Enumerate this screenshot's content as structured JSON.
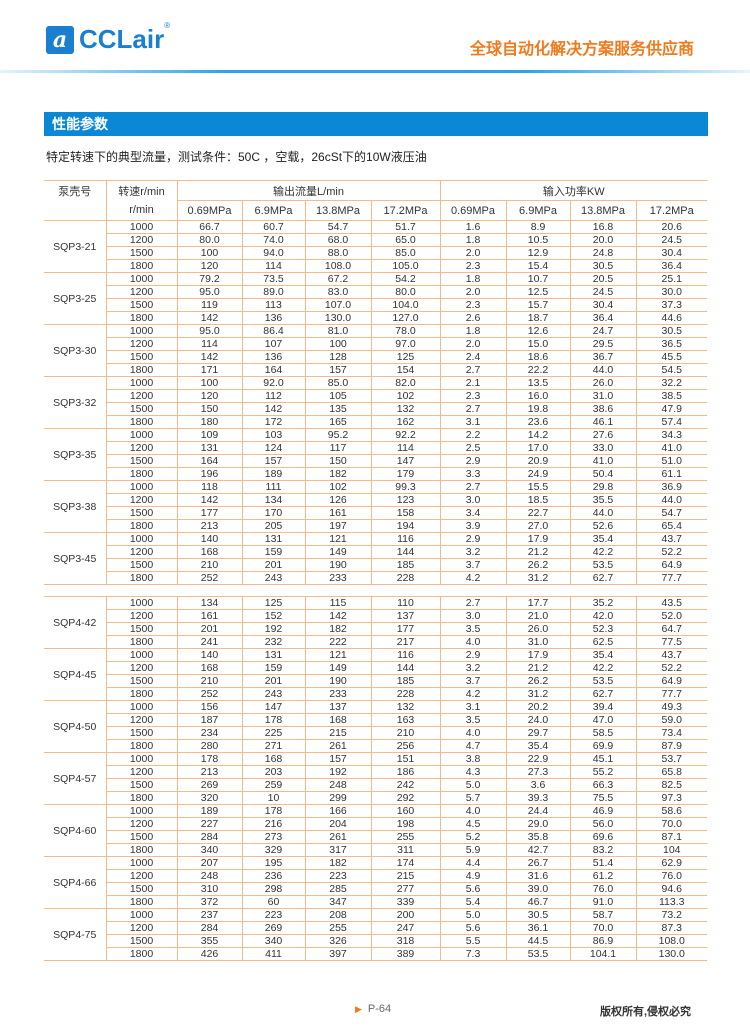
{
  "header": {
    "logo_text": "CCLair",
    "logo_mark": "a",
    "registered": "®",
    "slogan": "全球自动化解决方案服务供应商"
  },
  "section": {
    "title": "性能参数",
    "note": "特定转速下的典型流量，测试条件：50C ，空载，26cSt下的10W液压油"
  },
  "table": {
    "headers": {
      "pump": "泵壳号",
      "speed": "转速r/min",
      "speed_unit": "r/min",
      "flow": "输出流量L/min",
      "power": "输入功率KW",
      "pressures": [
        "0.69MPa",
        "6.9MPa",
        "13.8MPa",
        "17.2MPa"
      ]
    },
    "groups1": [
      {
        "pump": "SQP3-21",
        "rows": [
          [
            "1000",
            "66.7",
            "60.7",
            "54.7",
            "51.7",
            "1.6",
            "8.9",
            "16.8",
            "20.6"
          ],
          [
            "1200",
            "80.0",
            "74.0",
            "68.0",
            "65.0",
            "1.8",
            "10.5",
            "20.0",
            "24.5"
          ],
          [
            "1500",
            "100",
            "94.0",
            "88.0",
            "85.0",
            "2.0",
            "12.9",
            "24.8",
            "30.4"
          ],
          [
            "1800",
            "120",
            "114",
            "108.0",
            "105.0",
            "2.3",
            "15.4",
            "30.5",
            "36.4"
          ]
        ]
      },
      {
        "pump": "SQP3-25",
        "rows": [
          [
            "1000",
            "79.2",
            "73.5",
            "67.2",
            "54.2",
            "1.8",
            "10.7",
            "20.5",
            "25.1"
          ],
          [
            "1200",
            "95.0",
            "89.0",
            "83.0",
            "80.0",
            "2.0",
            "12.5",
            "24.5",
            "30.0"
          ],
          [
            "1500",
            "119",
            "113",
            "107.0",
            "104.0",
            "2.3",
            "15.7",
            "30.4",
            "37.3"
          ],
          [
            "1800",
            "142",
            "136",
            "130.0",
            "127.0",
            "2.6",
            "18.7",
            "36.4",
            "44.6"
          ]
        ]
      },
      {
        "pump": "SQP3-30",
        "rows": [
          [
            "1000",
            "95.0",
            "86.4",
            "81.0",
            "78.0",
            "1.8",
            "12.6",
            "24.7",
            "30.5"
          ],
          [
            "1200",
            "114",
            "107",
            "100",
            "97.0",
            "2.0",
            "15.0",
            "29.5",
            "36.5"
          ],
          [
            "1500",
            "142",
            "136",
            "128",
            "125",
            "2.4",
            "18.6",
            "36.7",
            "45.5"
          ],
          [
            "1800",
            "171",
            "164",
            "157",
            "154",
            "2.7",
            "22.2",
            "44.0",
            "54.5"
          ]
        ]
      },
      {
        "pump": "SQP3-32",
        "rows": [
          [
            "1000",
            "100",
            "92.0",
            "85.0",
            "82.0",
            "2.1",
            "13.5",
            "26.0",
            "32.2"
          ],
          [
            "1200",
            "120",
            "112",
            "105",
            "102",
            "2.3",
            "16.0",
            "31.0",
            "38.5"
          ],
          [
            "1500",
            "150",
            "142",
            "135",
            "132",
            "2.7",
            "19.8",
            "38.6",
            "47.9"
          ],
          [
            "1800",
            "180",
            "172",
            "165",
            "162",
            "3.1",
            "23.6",
            "46.1",
            "57.4"
          ]
        ]
      },
      {
        "pump": "SQP3-35",
        "rows": [
          [
            "1000",
            "109",
            "103",
            "95.2",
            "92.2",
            "2.2",
            "14.2",
            "27.6",
            "34.3"
          ],
          [
            "1200",
            "131",
            "124",
            "117",
            "114",
            "2.5",
            "17.0",
            "33.0",
            "41.0"
          ],
          [
            "1500",
            "164",
            "157",
            "150",
            "147",
            "2.9",
            "20.9",
            "41.0",
            "51.0"
          ],
          [
            "1800",
            "196",
            "189",
            "182",
            "179",
            "3.3",
            "24.9",
            "50.4",
            "61.1"
          ]
        ]
      },
      {
        "pump": "SQP3-38",
        "rows": [
          [
            "1000",
            "118",
            "111",
            "102",
            "99.3",
            "2.7",
            "15.5",
            "29.8",
            "36.9"
          ],
          [
            "1200",
            "142",
            "134",
            "126",
            "123",
            "3.0",
            "18.5",
            "35.5",
            "44.0"
          ],
          [
            "1500",
            "177",
            "170",
            "161",
            "158",
            "3.4",
            "22.7",
            "44.0",
            "54.7"
          ],
          [
            "1800",
            "213",
            "205",
            "197",
            "194",
            "3.9",
            "27.0",
            "52.6",
            "65.4"
          ]
        ]
      },
      {
        "pump": "SQP3-45",
        "rows": [
          [
            "1000",
            "140",
            "131",
            "121",
            "116",
            "2.9",
            "17.9",
            "35.4",
            "43.7"
          ],
          [
            "1200",
            "168",
            "159",
            "149",
            "144",
            "3.2",
            "21.2",
            "42.2",
            "52.2"
          ],
          [
            "1500",
            "210",
            "201",
            "190",
            "185",
            "3.7",
            "26.2",
            "53.5",
            "64.9"
          ],
          [
            "1800",
            "252",
            "243",
            "233",
            "228",
            "4.2",
            "31.2",
            "62.7",
            "77.7"
          ]
        ]
      }
    ],
    "groups2": [
      {
        "pump": "SQP4-42",
        "rows": [
          [
            "1000",
            "134",
            "125",
            "115",
            "110",
            "2.7",
            "17.7",
            "35.2",
            "43.5"
          ],
          [
            "1200",
            "161",
            "152",
            "142",
            "137",
            "3.0",
            "21.0",
            "42.0",
            "52.0"
          ],
          [
            "1500",
            "201",
            "192",
            "182",
            "177",
            "3.5",
            "26.0",
            "52.3",
            "64.7"
          ],
          [
            "1800",
            "241",
            "232",
            "222",
            "217",
            "4.0",
            "31.0",
            "62.5",
            "77.5"
          ]
        ]
      },
      {
        "pump": "SQP4-45",
        "rows": [
          [
            "1000",
            "140",
            "131",
            "121",
            "116",
            "2.9",
            "17.9",
            "35.4",
            "43.7"
          ],
          [
            "1200",
            "168",
            "159",
            "149",
            "144",
            "3.2",
            "21.2",
            "42.2",
            "52.2"
          ],
          [
            "1500",
            "210",
            "201",
            "190",
            "185",
            "3.7",
            "26.2",
            "53.5",
            "64.9"
          ],
          [
            "1800",
            "252",
            "243",
            "233",
            "228",
            "4.2",
            "31.2",
            "62.7",
            "77.7"
          ]
        ]
      },
      {
        "pump": "SQP4-50",
        "rows": [
          [
            "1000",
            "156",
            "147",
            "137",
            "132",
            "3.1",
            "20.2",
            "39.4",
            "49.3"
          ],
          [
            "1200",
            "187",
            "178",
            "168",
            "163",
            "3.5",
            "24.0",
            "47.0",
            "59.0"
          ],
          [
            "1500",
            "234",
            "225",
            "215",
            "210",
            "4.0",
            "29.7",
            "58.5",
            "73.4"
          ],
          [
            "1800",
            "280",
            "271",
            "261",
            "256",
            "4.7",
            "35.4",
            "69.9",
            "87.9"
          ]
        ]
      },
      {
        "pump": "SQP4-57",
        "rows": [
          [
            "1000",
            "178",
            "168",
            "157",
            "151",
            "3.8",
            "22.9",
            "45.1",
            "53.7"
          ],
          [
            "1200",
            "213",
            "203",
            "192",
            "186",
            "4.3",
            "27.3",
            "55.2",
            "65.8"
          ],
          [
            "1500",
            "269",
            "259",
            "248",
            "242",
            "5.0",
            "3.6",
            "66.3",
            "82.5"
          ],
          [
            "1800",
            "320",
            "10",
            "299",
            "292",
            "5.7",
            "39.3",
            "75.5",
            "97.3"
          ]
        ]
      },
      {
        "pump": "SQP4-60",
        "rows": [
          [
            "1000",
            "189",
            "178",
            "166",
            "160",
            "4.0",
            "24.4",
            "46.9",
            "58.6"
          ],
          [
            "1200",
            "227",
            "216",
            "204",
            "198",
            "4.5",
            "29.0",
            "56.0",
            "70.0"
          ],
          [
            "1500",
            "284",
            "273",
            "261",
            "255",
            "5.2",
            "35.8",
            "69.6",
            "87.1"
          ],
          [
            "1800",
            "340",
            "329",
            "317",
            "311",
            "5.9",
            "42.7",
            "83.2",
            "104"
          ]
        ]
      },
      {
        "pump": "SQP4-66",
        "rows": [
          [
            "1000",
            "207",
            "195",
            "182",
            "174",
            "4.4",
            "26.7",
            "51.4",
            "62.9"
          ],
          [
            "1200",
            "248",
            "236",
            "223",
            "215",
            "4.9",
            "31.6",
            "61.2",
            "76.0"
          ],
          [
            "1500",
            "310",
            "298",
            "285",
            "277",
            "5.6",
            "39.0",
            "76.0",
            "94.6"
          ],
          [
            "1800",
            "372",
            "60",
            "347",
            "339",
            "5.4",
            "46.7",
            "91.0",
            "113.3"
          ]
        ]
      },
      {
        "pump": "SQP4-75",
        "rows": [
          [
            "1000",
            "237",
            "223",
            "208",
            "200",
            "5.0",
            "30.5",
            "58.7",
            "73.2"
          ],
          [
            "1200",
            "284",
            "269",
            "255",
            "247",
            "5.6",
            "36.1",
            "70.0",
            "87.3"
          ],
          [
            "1500",
            "355",
            "340",
            "326",
            "318",
            "5.5",
            "44.5",
            "86.9",
            "108.0"
          ],
          [
            "1800",
            "426",
            "411",
            "397",
            "389",
            "7.3",
            "53.5",
            "104.1",
            "130.0"
          ]
        ]
      }
    ]
  },
  "footer": {
    "page": "P-64",
    "copyright": "版权所有,侵权必究"
  },
  "colors": {
    "brand_blue": "#0a88d6",
    "accent_orange": "#f07a1c",
    "table_line": "#f6b98a"
  }
}
